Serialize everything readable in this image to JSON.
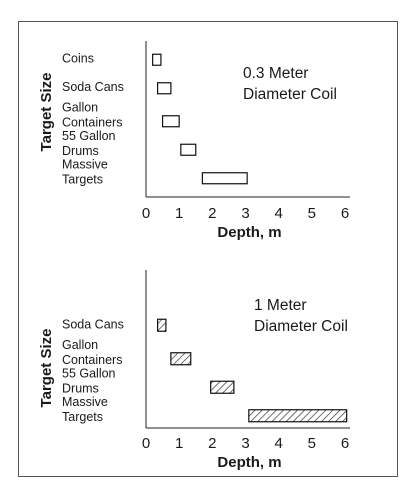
{
  "chart_data": [
    {
      "type": "bar",
      "orientation": "horizontal-range",
      "ylabel": "Target Size",
      "xlabel": "Depth, m",
      "annotation": [
        "0.3 Meter",
        "Diameter Coil"
      ],
      "xlim": [
        0,
        6
      ],
      "xticks": [
        0,
        1,
        2,
        3,
        4,
        5,
        6
      ],
      "bar_fill": "none",
      "categories": [
        {
          "label": [
            "Coins"
          ],
          "range": [
            0.2,
            0.45
          ]
        },
        {
          "label": [
            "Soda Cans"
          ],
          "range": [
            0.35,
            0.75
          ]
        },
        {
          "label": [
            "Gallon",
            "Containers"
          ],
          "range": [
            0.5,
            1.0
          ]
        },
        {
          "label": [
            "55 Gallon",
            "Drums"
          ],
          "range": [
            1.05,
            1.5
          ]
        },
        {
          "label": [
            "Massive",
            "Targets"
          ],
          "range": [
            1.7,
            3.05
          ]
        }
      ]
    },
    {
      "type": "bar",
      "orientation": "horizontal-range",
      "ylabel": "Target Size",
      "xlabel": "Depth, m",
      "annotation": [
        "1 Meter",
        "Diameter Coil"
      ],
      "xlim": [
        0,
        6
      ],
      "xticks": [
        0,
        1,
        2,
        3,
        4,
        5,
        6
      ],
      "bar_fill": "hatched",
      "categories": [
        {
          "label": [
            "Soda Cans"
          ],
          "range": [
            0.35,
            0.6
          ]
        },
        {
          "label": [
            "Gallon",
            "Containers"
          ],
          "range": [
            0.75,
            1.35
          ]
        },
        {
          "label": [
            "55 Gallon",
            "Drums"
          ],
          "range": [
            1.95,
            2.65
          ]
        },
        {
          "label": [
            "Massive",
            "Targets"
          ],
          "range": [
            3.1,
            6.05
          ]
        }
      ]
    }
  ]
}
